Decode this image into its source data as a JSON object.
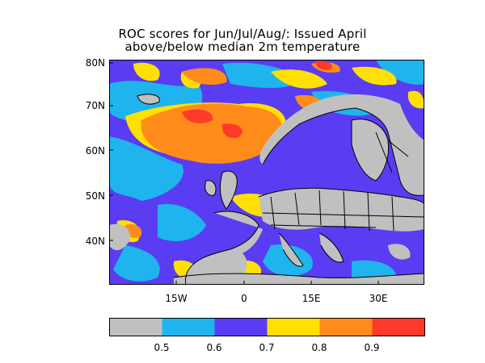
{
  "title": {
    "line1": "ROC scores for Jun/Jul/Aug/: Issued April",
    "line2": "above/below median 2m temperature"
  },
  "map": {
    "lat_labels": [
      "80N",
      "70N",
      "60N",
      "50N",
      "40N"
    ],
    "lon_labels": [
      "15W",
      "0",
      "15E",
      "30E"
    ],
    "land_color": "#c0c0c0"
  },
  "colorbar": {
    "colors": [
      "#c0c0c0",
      "#1fb4ee",
      "#5a3cf2",
      "#ffe000",
      "#ff8c1a",
      "#ff3a2a"
    ],
    "tick_labels": [
      "0.5",
      "0.6",
      "0.7",
      "0.8",
      "0.9"
    ]
  }
}
